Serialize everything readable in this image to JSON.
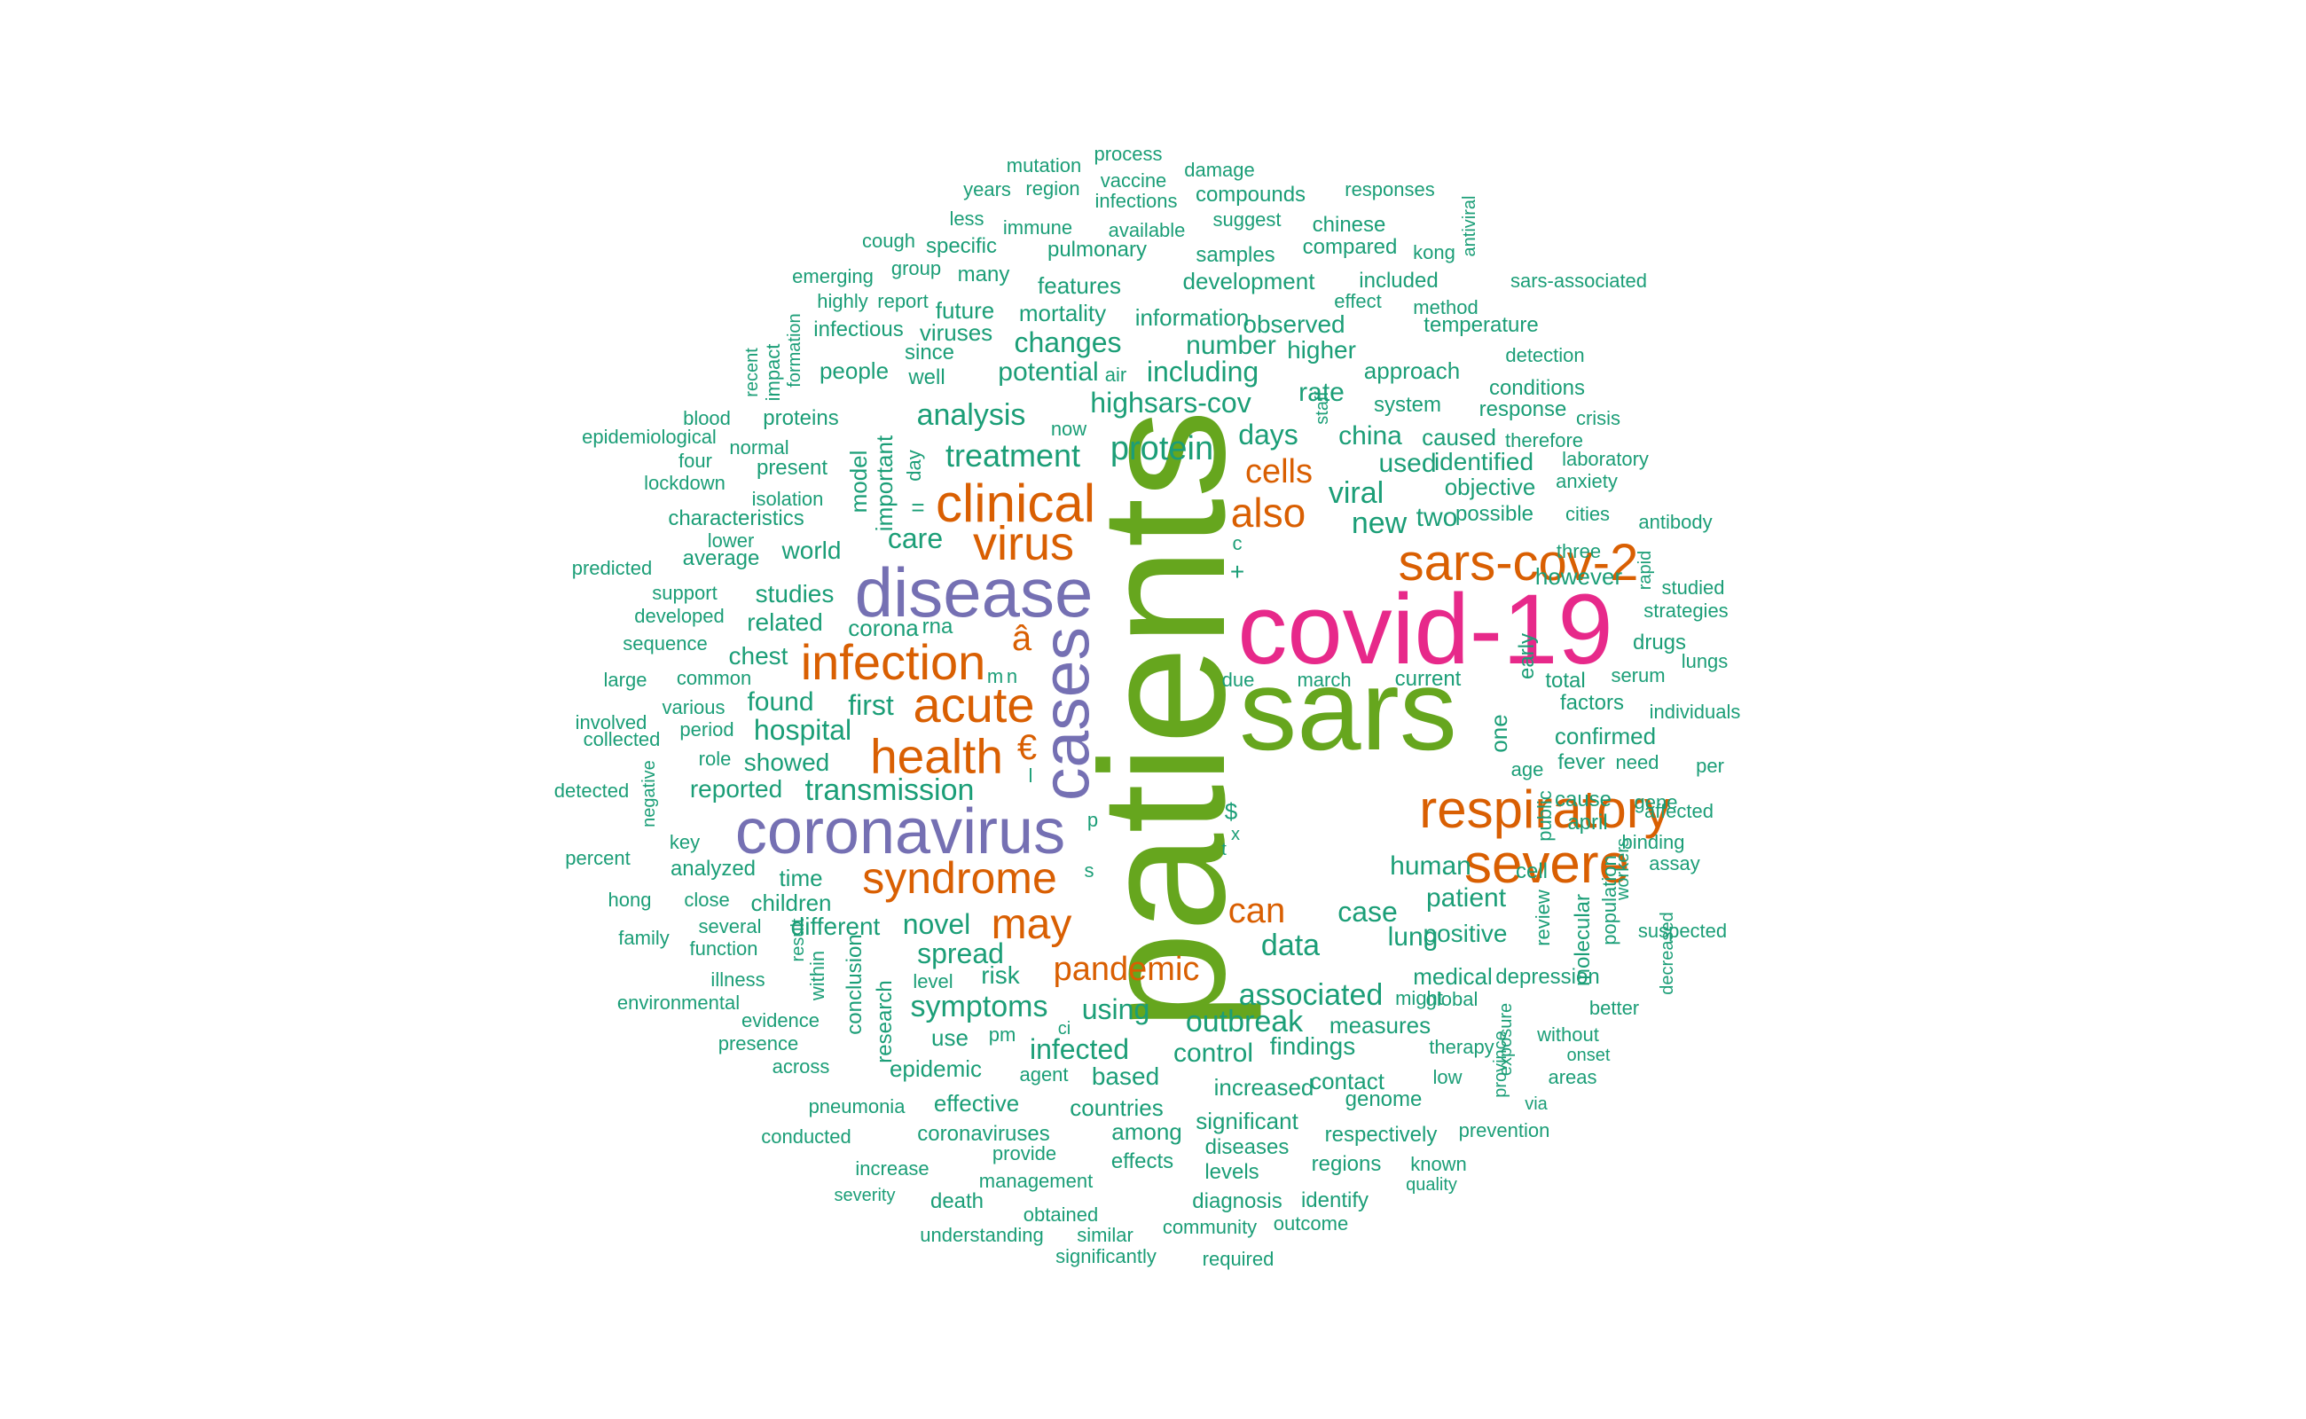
{
  "palette": {
    "green": "#66a61e",
    "pink": "#e7298a",
    "purple": "#7570b3",
    "orange": "#d95f02",
    "teal": "#1b9e77"
  },
  "words": [
    {
      "text": "patients",
      "color": "green"
    },
    {
      "text": "sars",
      "color": "green"
    },
    {
      "text": "covid-19",
      "color": "pink"
    },
    {
      "text": "disease",
      "color": "purple"
    },
    {
      "text": "coronavirus",
      "color": "purple"
    },
    {
      "text": "cases",
      "color": "purple"
    },
    {
      "text": "clinical",
      "color": "orange"
    },
    {
      "text": "virus",
      "color": "orange"
    },
    {
      "text": "infection",
      "color": "orange"
    },
    {
      "text": "acute",
      "color": "orange"
    },
    {
      "text": "health",
      "color": "orange"
    },
    {
      "text": "syndrome",
      "color": "orange"
    },
    {
      "text": "sars-cov-2",
      "color": "orange"
    },
    {
      "text": "respiratory",
      "color": "orange"
    },
    {
      "text": "severe",
      "color": "orange"
    },
    {
      "text": "also",
      "color": "orange"
    },
    {
      "text": "may",
      "color": "orange"
    },
    {
      "text": "can",
      "color": "orange"
    },
    {
      "text": "pandemic",
      "color": "orange"
    },
    {
      "text": "cells",
      "color": "orange"
    },
    {
      "text": "â",
      "color": "orange"
    },
    {
      "text": "€",
      "color": "orange"
    },
    {
      "text": "mutation",
      "color": "teal"
    },
    {
      "text": "process",
      "color": "teal"
    },
    {
      "text": "damage",
      "color": "teal"
    },
    {
      "text": "years",
      "color": "teal"
    },
    {
      "text": "region",
      "color": "teal"
    },
    {
      "text": "vaccine",
      "color": "teal"
    },
    {
      "text": "infections",
      "color": "teal"
    },
    {
      "text": "compounds",
      "color": "teal"
    },
    {
      "text": "responses",
      "color": "teal"
    },
    {
      "text": "antiviral",
      "color": "teal"
    },
    {
      "text": "less",
      "color": "teal"
    },
    {
      "text": "immune",
      "color": "teal"
    },
    {
      "text": "available",
      "color": "teal"
    },
    {
      "text": "suggest",
      "color": "teal"
    },
    {
      "text": "chinese",
      "color": "teal"
    },
    {
      "text": "cough",
      "color": "teal"
    },
    {
      "text": "specific",
      "color": "teal"
    },
    {
      "text": "pulmonary",
      "color": "teal"
    },
    {
      "text": "samples",
      "color": "teal"
    },
    {
      "text": "compared",
      "color": "teal"
    },
    {
      "text": "kong",
      "color": "teal"
    },
    {
      "text": "emerging",
      "color": "teal"
    },
    {
      "text": "group",
      "color": "teal"
    },
    {
      "text": "many",
      "color": "teal"
    },
    {
      "text": "features",
      "color": "teal"
    },
    {
      "text": "development",
      "color": "teal"
    },
    {
      "text": "included",
      "color": "teal"
    },
    {
      "text": "sars-associated",
      "color": "teal"
    },
    {
      "text": "highly",
      "color": "teal"
    },
    {
      "text": "report",
      "color": "teal"
    },
    {
      "text": "future",
      "color": "teal"
    },
    {
      "text": "mortality",
      "color": "teal"
    },
    {
      "text": "information",
      "color": "teal"
    },
    {
      "text": "effect",
      "color": "teal"
    },
    {
      "text": "method",
      "color": "teal"
    },
    {
      "text": "formation",
      "color": "teal"
    },
    {
      "text": "infectious",
      "color": "teal"
    },
    {
      "text": "viruses",
      "color": "teal"
    },
    {
      "text": "changes",
      "color": "teal"
    },
    {
      "text": "observed",
      "color": "teal"
    },
    {
      "text": "temperature",
      "color": "teal"
    },
    {
      "text": "recent",
      "color": "teal"
    },
    {
      "text": "impact",
      "color": "teal"
    },
    {
      "text": "since",
      "color": "teal"
    },
    {
      "text": "higher",
      "color": "teal"
    },
    {
      "text": "detection",
      "color": "teal"
    },
    {
      "text": "people",
      "color": "teal"
    },
    {
      "text": "potential",
      "color": "teal"
    },
    {
      "text": "air",
      "color": "teal"
    },
    {
      "text": "including",
      "color": "teal"
    },
    {
      "text": "approach",
      "color": "teal"
    },
    {
      "text": "well",
      "color": "teal"
    },
    {
      "text": "number",
      "color": "teal"
    },
    {
      "text": "conditions",
      "color": "teal"
    },
    {
      "text": "blood",
      "color": "teal"
    },
    {
      "text": "proteins",
      "color": "teal"
    },
    {
      "text": "highsars-cov",
      "color": "teal"
    },
    {
      "text": "rate",
      "color": "teal"
    },
    {
      "text": "system",
      "color": "teal"
    },
    {
      "text": "response",
      "color": "teal"
    },
    {
      "text": "crisis",
      "color": "teal"
    },
    {
      "text": "epidemiological",
      "color": "teal"
    },
    {
      "text": "analysis",
      "color": "teal"
    },
    {
      "text": "now",
      "color": "teal"
    },
    {
      "text": "days",
      "color": "teal"
    },
    {
      "text": "china",
      "color": "teal"
    },
    {
      "text": "caused",
      "color": "teal"
    },
    {
      "text": "therefore",
      "color": "teal"
    },
    {
      "text": "four",
      "color": "teal"
    },
    {
      "text": "normal",
      "color": "teal"
    },
    {
      "text": "treatment",
      "color": "teal"
    },
    {
      "text": "protein",
      "color": "teal"
    },
    {
      "text": "staff",
      "color": "teal"
    },
    {
      "text": "used",
      "color": "teal"
    },
    {
      "text": "identified",
      "color": "teal"
    },
    {
      "text": "laboratory",
      "color": "teal"
    },
    {
      "text": "lockdown",
      "color": "teal"
    },
    {
      "text": "present",
      "color": "teal"
    },
    {
      "text": "important",
      "color": "teal"
    },
    {
      "text": "day",
      "color": "teal"
    },
    {
      "text": "objective",
      "color": "teal"
    },
    {
      "text": "anxiety",
      "color": "teal"
    },
    {
      "text": "isolation",
      "color": "teal"
    },
    {
      "text": "model",
      "color": "teal"
    },
    {
      "text": "viral",
      "color": "teal"
    },
    {
      "text": "possible",
      "color": "teal"
    },
    {
      "text": "cities",
      "color": "teal"
    },
    {
      "text": "characteristics",
      "color": "teal"
    },
    {
      "text": "=",
      "color": "teal"
    },
    {
      "text": "new",
      "color": "teal"
    },
    {
      "text": "two",
      "color": "teal"
    },
    {
      "text": "antibody",
      "color": "teal"
    },
    {
      "text": "lower",
      "color": "teal"
    },
    {
      "text": "care",
      "color": "teal"
    },
    {
      "text": "c",
      "color": "teal"
    },
    {
      "text": "three",
      "color": "teal"
    },
    {
      "text": "rapid",
      "color": "teal"
    },
    {
      "text": "predicted",
      "color": "teal"
    },
    {
      "text": "average",
      "color": "teal"
    },
    {
      "text": "world",
      "color": "teal"
    },
    {
      "text": "+",
      "color": "teal"
    },
    {
      "text": "however",
      "color": "teal"
    },
    {
      "text": "studied",
      "color": "teal"
    },
    {
      "text": "support",
      "color": "teal"
    },
    {
      "text": "studies",
      "color": "teal"
    },
    {
      "text": "strategies",
      "color": "teal"
    },
    {
      "text": "developed",
      "color": "teal"
    },
    {
      "text": "related",
      "color": "teal"
    },
    {
      "text": "corona",
      "color": "teal"
    },
    {
      "text": "rna",
      "color": "teal"
    },
    {
      "text": "sequence",
      "color": "teal"
    },
    {
      "text": "drugs",
      "color": "teal"
    },
    {
      "text": "chest",
      "color": "teal"
    },
    {
      "text": "lungs",
      "color": "teal"
    },
    {
      "text": "common",
      "color": "teal"
    },
    {
      "text": "m",
      "color": "teal"
    },
    {
      "text": "due",
      "color": "teal"
    },
    {
      "text": "march",
      "color": "teal"
    },
    {
      "text": "current",
      "color": "teal"
    },
    {
      "text": "total",
      "color": "teal"
    },
    {
      "text": "serum",
      "color": "teal"
    },
    {
      "text": "large",
      "color": "teal"
    },
    {
      "text": "n",
      "color": "teal"
    },
    {
      "text": "early",
      "color": "teal"
    },
    {
      "text": "various",
      "color": "teal"
    },
    {
      "text": "found",
      "color": "teal"
    },
    {
      "text": "first",
      "color": "teal"
    },
    {
      "text": "factors",
      "color": "teal"
    },
    {
      "text": "individuals",
      "color": "teal"
    },
    {
      "text": "involved",
      "color": "teal"
    },
    {
      "text": "period",
      "color": "teal"
    },
    {
      "text": "hospital",
      "color": "teal"
    },
    {
      "text": "one",
      "color": "teal"
    },
    {
      "text": "confirmed",
      "color": "teal"
    },
    {
      "text": "collected",
      "color": "teal"
    },
    {
      "text": "role",
      "color": "teal"
    },
    {
      "text": "showed",
      "color": "teal"
    },
    {
      "text": "l",
      "color": "teal"
    },
    {
      "text": "fever",
      "color": "teal"
    },
    {
      "text": "need",
      "color": "teal"
    },
    {
      "text": "per",
      "color": "teal"
    },
    {
      "text": "negative",
      "color": "teal"
    },
    {
      "text": "age",
      "color": "teal"
    },
    {
      "text": "detected",
      "color": "teal"
    },
    {
      "text": "reported",
      "color": "teal"
    },
    {
      "text": "transmission",
      "color": "teal"
    },
    {
      "text": "gene",
      "color": "teal"
    },
    {
      "text": "cause",
      "color": "teal"
    },
    {
      "text": "$",
      "color": "teal"
    },
    {
      "text": "public",
      "color": "teal"
    },
    {
      "text": "affected",
      "color": "teal"
    },
    {
      "text": "april",
      "color": "teal"
    },
    {
      "text": "p",
      "color": "teal"
    },
    {
      "text": "x",
      "color": "teal"
    },
    {
      "text": "binding",
      "color": "teal"
    },
    {
      "text": "key",
      "color": "teal"
    },
    {
      "text": "t",
      "color": "teal"
    },
    {
      "text": "human",
      "color": "teal"
    },
    {
      "text": "percent",
      "color": "teal"
    },
    {
      "text": "analyzed",
      "color": "teal"
    },
    {
      "text": "assay",
      "color": "teal"
    },
    {
      "text": "s",
      "color": "teal"
    },
    {
      "text": "cell",
      "color": "teal"
    },
    {
      "text": "time",
      "color": "teal"
    },
    {
      "text": "workers",
      "color": "teal"
    },
    {
      "text": "hong",
      "color": "teal"
    },
    {
      "text": "close",
      "color": "teal"
    },
    {
      "text": "children",
      "color": "teal"
    },
    {
      "text": "patient",
      "color": "teal"
    },
    {
      "text": "case",
      "color": "teal"
    },
    {
      "text": "review",
      "color": "teal"
    },
    {
      "text": "population",
      "color": "teal"
    },
    {
      "text": "several",
      "color": "teal"
    },
    {
      "text": "different",
      "color": "teal"
    },
    {
      "text": "novel",
      "color": "teal"
    },
    {
      "text": "suspected",
      "color": "teal"
    },
    {
      "text": "family",
      "color": "teal"
    },
    {
      "text": "function",
      "color": "teal"
    },
    {
      "text": "result",
      "color": "teal"
    },
    {
      "text": "spread",
      "color": "teal"
    },
    {
      "text": "data",
      "color": "teal"
    },
    {
      "text": "lung",
      "color": "teal"
    },
    {
      "text": "positive",
      "color": "teal"
    },
    {
      "text": "molecular",
      "color": "teal"
    },
    {
      "text": "decreased",
      "color": "teal"
    },
    {
      "text": "illness",
      "color": "teal"
    },
    {
      "text": "within",
      "color": "teal"
    },
    {
      "text": "level",
      "color": "teal"
    },
    {
      "text": "risk",
      "color": "teal"
    },
    {
      "text": "medical",
      "color": "teal"
    },
    {
      "text": "depression",
      "color": "teal"
    },
    {
      "text": "environmental",
      "color": "teal"
    },
    {
      "text": "conclusion",
      "color": "teal"
    },
    {
      "text": "symptoms",
      "color": "teal"
    },
    {
      "text": "associated",
      "color": "teal"
    },
    {
      "text": "global",
      "color": "teal"
    },
    {
      "text": "might",
      "color": "teal"
    },
    {
      "text": "better",
      "color": "teal"
    },
    {
      "text": "evidence",
      "color": "teal"
    },
    {
      "text": "research",
      "color": "teal"
    },
    {
      "text": "using",
      "color": "teal"
    },
    {
      "text": "outbreak",
      "color": "teal"
    },
    {
      "text": "measures",
      "color": "teal"
    },
    {
      "text": "presence",
      "color": "teal"
    },
    {
      "text": "use",
      "color": "teal"
    },
    {
      "text": "pm",
      "color": "teal"
    },
    {
      "text": "ci",
      "color": "teal"
    },
    {
      "text": "findings",
      "color": "teal"
    },
    {
      "text": "exposure",
      "color": "teal"
    },
    {
      "text": "without",
      "color": "teal"
    },
    {
      "text": "onset",
      "color": "teal"
    },
    {
      "text": "infected",
      "color": "teal"
    },
    {
      "text": "control",
      "color": "teal"
    },
    {
      "text": "therapy",
      "color": "teal"
    },
    {
      "text": "across",
      "color": "teal"
    },
    {
      "text": "epidemic",
      "color": "teal"
    },
    {
      "text": "agent",
      "color": "teal"
    },
    {
      "text": "based",
      "color": "teal"
    },
    {
      "text": "increased",
      "color": "teal"
    },
    {
      "text": "contact",
      "color": "teal"
    },
    {
      "text": "low",
      "color": "teal"
    },
    {
      "text": "areas",
      "color": "teal"
    },
    {
      "text": "genome",
      "color": "teal"
    },
    {
      "text": "province",
      "color": "teal"
    },
    {
      "text": "via",
      "color": "teal"
    },
    {
      "text": "pneumonia",
      "color": "teal"
    },
    {
      "text": "effective",
      "color": "teal"
    },
    {
      "text": "countries",
      "color": "teal"
    },
    {
      "text": "significant",
      "color": "teal"
    },
    {
      "text": "among",
      "color": "teal"
    },
    {
      "text": "respectively",
      "color": "teal"
    },
    {
      "text": "prevention",
      "color": "teal"
    },
    {
      "text": "conducted",
      "color": "teal"
    },
    {
      "text": "coronaviruses",
      "color": "teal"
    },
    {
      "text": "diseases",
      "color": "teal"
    },
    {
      "text": "provide",
      "color": "teal"
    },
    {
      "text": "effects",
      "color": "teal"
    },
    {
      "text": "regions",
      "color": "teal"
    },
    {
      "text": "known",
      "color": "teal"
    },
    {
      "text": "increase",
      "color": "teal"
    },
    {
      "text": "levels",
      "color": "teal"
    },
    {
      "text": "management",
      "color": "teal"
    },
    {
      "text": "quality",
      "color": "teal"
    },
    {
      "text": "severity",
      "color": "teal"
    },
    {
      "text": "death",
      "color": "teal"
    },
    {
      "text": "diagnosis",
      "color": "teal"
    },
    {
      "text": "identify",
      "color": "teal"
    },
    {
      "text": "obtained",
      "color": "teal"
    },
    {
      "text": "outcome",
      "color": "teal"
    },
    {
      "text": "understanding",
      "color": "teal"
    },
    {
      "text": "similar",
      "color": "teal"
    },
    {
      "text": "community",
      "color": "teal"
    },
    {
      "text": "significantly",
      "color": "teal"
    },
    {
      "text": "required",
      "color": "teal"
    }
  ]
}
